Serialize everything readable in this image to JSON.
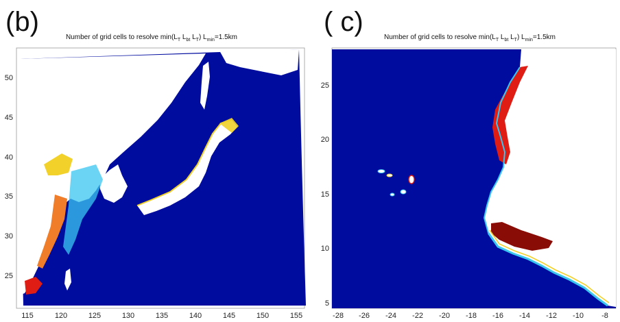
{
  "panels": [
    {
      "letter": "(b)",
      "title": {
        "prefix": "Number of grid cells to resolve min(L",
        "s1": "T",
        "m1": " L",
        "s2": "bt",
        "m2": " L",
        "s3": "T",
        "m3": ") L",
        "s4": "min",
        "suffix": "=1.5km"
      }
    },
    {
      "letter": "( c)",
      "title": {
        "prefix": "Number of grid cells to resolve min(L",
        "s1": "T",
        "m1": " L",
        "s2": "bt",
        "m2": " L",
        "s3": "T",
        "m3": ") L",
        "s4": "min",
        "suffix": "=1.5km"
      }
    }
  ],
  "colors": {
    "ocean": "#000c9e",
    "land": "#ffffff",
    "cyan": "#39c6f0",
    "yellow": "#f1d12a",
    "orange": "#ef7d2a",
    "red": "#df1d14",
    "darkred": "#8a0c06"
  },
  "chart_data": [
    {
      "type": "heatmap",
      "xlim": [
        113,
        156
      ],
      "ylim": [
        21,
        53
      ],
      "xticks": [
        115,
        120,
        125,
        130,
        135,
        140,
        145,
        150,
        155
      ],
      "yticks": [
        25,
        30,
        35,
        40,
        45,
        50
      ],
      "grid": false
    },
    {
      "type": "heatmap",
      "xlim": [
        -29.2,
        -8
      ],
      "ylim": [
        4.8,
        28.5
      ],
      "xticks": [
        -28,
        -26,
        -24,
        -22,
        -20,
        -18,
        -16,
        -14,
        -12,
        -10,
        -8
      ],
      "yticks": [
        5,
        10,
        15,
        20,
        25
      ],
      "grid": false
    }
  ]
}
